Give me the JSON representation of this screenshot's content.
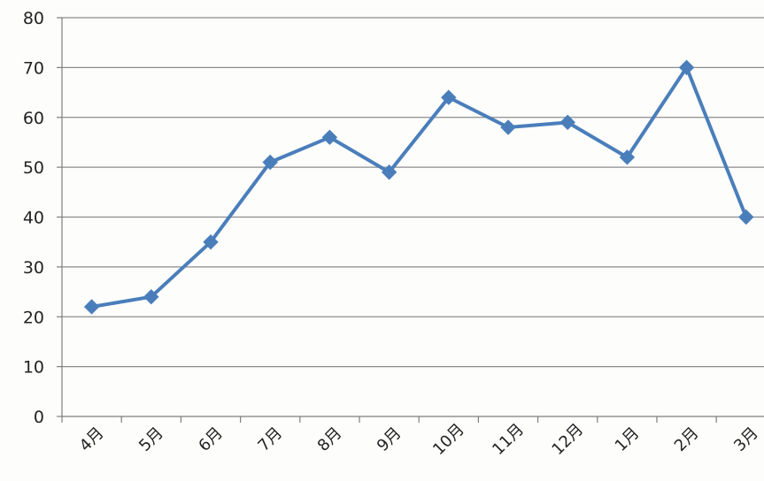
{
  "chart_data": {
    "type": "line",
    "title": "",
    "xlabel": "",
    "ylabel": "",
    "categories": [
      "4月",
      "5月",
      "6月",
      "7月",
      "8月",
      "9月",
      "10月",
      "11月",
      "12月",
      "1月",
      "2月",
      "3月"
    ],
    "series": [
      {
        "values": [
          22,
          24,
          35,
          51,
          56,
          49,
          64,
          58,
          59,
          52,
          70,
          40
        ]
      }
    ],
    "ylim": [
      0,
      80
    ],
    "yticks": [
      0,
      10,
      20,
      30,
      40,
      50,
      60,
      70,
      80
    ],
    "grid": true,
    "legend": "none",
    "colors": {
      "line": "#4a7ebb",
      "marker": "#4a7ebb",
      "grid": "#8c8c8c",
      "axis": "#7f7f7f",
      "text": "#222222"
    }
  }
}
